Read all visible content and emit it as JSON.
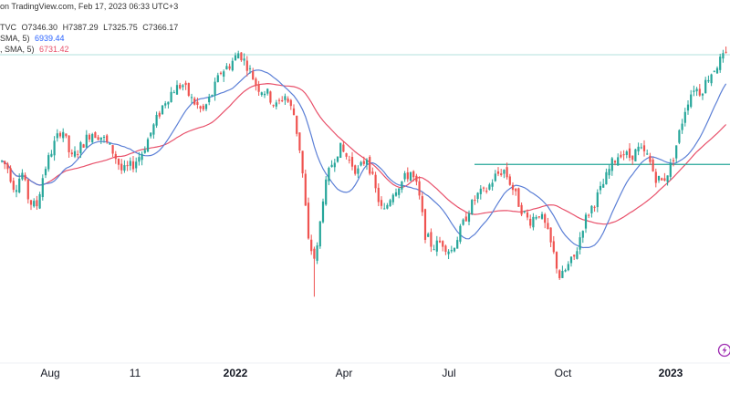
{
  "header": {
    "published": "on TradingView.com, Feb 17, 2023 06:33 UTC+3",
    "ohlc_source": "TVC",
    "open": "7346.30",
    "high": "7387.29",
    "low": "7325.75",
    "close": "7366.17",
    "ma1_label": "SMA, 5)",
    "ma1_value": "6939.44",
    "ma2_label": ", SMA, 5)",
    "ma2_value": "6731.42"
  },
  "colors": {
    "up": "#26a69a",
    "down": "#ef5350",
    "ma1": "#5b7fd6",
    "ma2": "#e8506a",
    "level": "#26a69a",
    "grid_last": "#9ad8d2"
  },
  "chart_data": {
    "type": "candlestick",
    "x_ticks": [
      "Aug",
      "11",
      "2022",
      "Apr",
      "Jul",
      "Oct",
      "2023"
    ],
    "bold_ticks": [
      "2022",
      "2023"
    ],
    "y_range_estimate": [
      6200,
      7450
    ],
    "horizontal_level": 6930,
    "last_close": 7366.17,
    "price_path": [
      [
        0,
        6950
      ],
      [
        8,
        6920
      ],
      [
        16,
        6830
      ],
      [
        24,
        6900
      ],
      [
        32,
        6780
      ],
      [
        40,
        6760
      ],
      [
        48,
        6900
      ],
      [
        58,
        7000
      ],
      [
        68,
        7080
      ],
      [
        78,
        6950
      ],
      [
        90,
        7010
      ],
      [
        100,
        7060
      ],
      [
        112,
        7040
      ],
      [
        124,
        6980
      ],
      [
        134,
        6900
      ],
      [
        146,
        6930
      ],
      [
        156,
        6980
      ],
      [
        168,
        7080
      ],
      [
        180,
        7180
      ],
      [
        190,
        7230
      ],
      [
        200,
        7250
      ],
      [
        210,
        7190
      ],
      [
        222,
        7140
      ],
      [
        232,
        7210
      ],
      [
        242,
        7300
      ],
      [
        252,
        7330
      ],
      [
        262,
        7380
      ],
      [
        272,
        7320
      ],
      [
        282,
        7240
      ],
      [
        292,
        7220
      ],
      [
        302,
        7160
      ],
      [
        312,
        7210
      ],
      [
        322,
        7130
      ],
      [
        330,
        6960
      ],
      [
        338,
        6620
      ],
      [
        346,
        6540
      ],
      [
        354,
        6800
      ],
      [
        362,
        6920
      ],
      [
        372,
        7000
      ],
      [
        382,
        6950
      ],
      [
        392,
        6900
      ],
      [
        402,
        6960
      ],
      [
        412,
        6820
      ],
      [
        420,
        6730
      ],
      [
        430,
        6820
      ],
      [
        440,
        6860
      ],
      [
        450,
        6900
      ],
      [
        458,
        6830
      ],
      [
        466,
        6650
      ],
      [
        474,
        6600
      ],
      [
        484,
        6620
      ],
      [
        494,
        6580
      ],
      [
        504,
        6660
      ],
      [
        514,
        6750
      ],
      [
        524,
        6810
      ],
      [
        532,
        6820
      ],
      [
        542,
        6880
      ],
      [
        552,
        6910
      ],
      [
        560,
        6850
      ],
      [
        570,
        6760
      ],
      [
        580,
        6700
      ],
      [
        590,
        6740
      ],
      [
        598,
        6680
      ],
      [
        606,
        6580
      ],
      [
        614,
        6470
      ],
      [
        622,
        6520
      ],
      [
        630,
        6560
      ],
      [
        640,
        6700
      ],
      [
        650,
        6770
      ],
      [
        660,
        6840
      ],
      [
        670,
        6930
      ],
      [
        680,
        6980
      ],
      [
        690,
        6960
      ],
      [
        700,
        6990
      ],
      [
        710,
        6960
      ],
      [
        718,
        6880
      ],
      [
        726,
        6860
      ],
      [
        736,
        6930
      ],
      [
        744,
        7050
      ],
      [
        752,
        7170
      ],
      [
        760,
        7240
      ],
      [
        768,
        7220
      ],
      [
        776,
        7280
      ],
      [
        784,
        7320
      ],
      [
        790,
        7350
      ],
      [
        796,
        7366
      ]
    ]
  },
  "icons": {
    "alert": "lightning-icon"
  }
}
